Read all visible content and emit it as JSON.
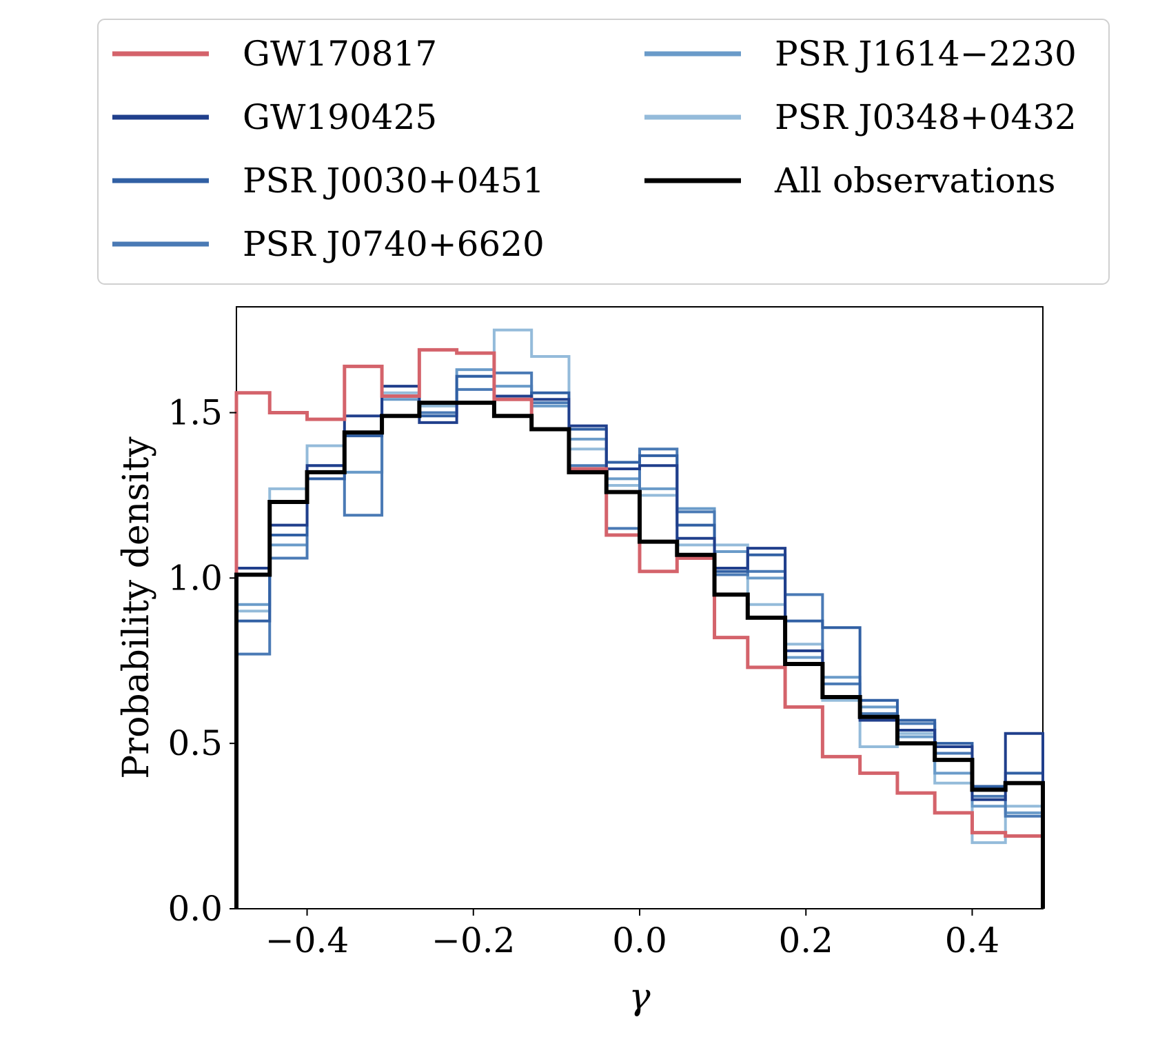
{
  "chart_data": {
    "type": "histogram",
    "xlabel": "γ",
    "ylabel": "Probability density",
    "xlim": [
      -0.485,
      0.485
    ],
    "ylim": [
      0.0,
      1.82
    ],
    "xticks": [
      -0.4,
      -0.2,
      0.0,
      0.2,
      0.4
    ],
    "xtick_labels": [
      "−0.4",
      "−0.2",
      "0.0",
      "0.2",
      "0.4"
    ],
    "yticks": [
      0.0,
      0.5,
      1.0,
      1.5
    ],
    "ytick_labels": [
      "0.0",
      "0.5",
      "1.0",
      "1.5"
    ],
    "grid": false,
    "legend_placement": "top, outside",
    "bin_edges": [
      -0.485,
      -0.445,
      -0.4,
      -0.355,
      -0.31,
      -0.265,
      -0.22,
      -0.175,
      -0.13,
      -0.085,
      -0.04,
      0.0,
      0.045,
      0.09,
      0.13,
      0.175,
      0.22,
      0.265,
      0.31,
      0.355,
      0.4,
      0.44,
      0.485
    ],
    "series": [
      {
        "name": "PSR J0348+0432",
        "color": "#94bbda",
        "width": 4,
        "values": [
          0.9,
          1.27,
          1.4,
          1.32,
          1.56,
          1.52,
          1.61,
          1.75,
          1.67,
          1.39,
          1.28,
          1.25,
          1.1,
          1.1,
          0.92,
          0.8,
          0.63,
          0.49,
          0.53,
          0.38,
          0.2,
          0.31
        ]
      },
      {
        "name": "PSR J1614−2230",
        "color": "#6a9bc9",
        "width": 4,
        "values": [
          0.92,
          1.1,
          1.34,
          1.32,
          1.54,
          1.53,
          1.63,
          1.58,
          1.52,
          1.42,
          1.3,
          1.27,
          1.21,
          1.08,
          1.0,
          0.76,
          0.7,
          0.61,
          0.52,
          0.41,
          0.31,
          0.29
        ]
      },
      {
        "name": "PSR J0740+6620",
        "color": "#4a7ab5",
        "width": 4,
        "values": [
          0.77,
          1.06,
          1.32,
          1.19,
          1.55,
          1.5,
          1.57,
          1.62,
          1.53,
          1.34,
          1.15,
          1.39,
          1.2,
          1.01,
          1.02,
          0.95,
          0.68,
          0.59,
          0.56,
          0.47,
          0.34,
          0.28
        ]
      },
      {
        "name": "PSR J0030+0451",
        "color": "#3160a4",
        "width": 4,
        "values": [
          0.87,
          1.13,
          1.3,
          1.43,
          1.49,
          1.49,
          1.61,
          1.55,
          1.56,
          1.45,
          1.35,
          1.37,
          1.16,
          1.02,
          1.07,
          0.87,
          0.85,
          0.63,
          0.57,
          0.5,
          0.37,
          0.41
        ]
      },
      {
        "name": "GW190425",
        "color": "#203f8c",
        "width": 4,
        "values": [
          1.03,
          1.16,
          1.34,
          1.49,
          1.58,
          1.47,
          1.53,
          1.55,
          1.54,
          1.46,
          1.33,
          1.34,
          1.12,
          1.03,
          1.09,
          0.78,
          0.64,
          0.57,
          0.54,
          0.49,
          0.33,
          0.53
        ]
      },
      {
        "name": "GW170817",
        "color": "#d4636b",
        "width": 5,
        "values": [
          1.56,
          1.5,
          1.48,
          1.64,
          1.55,
          1.69,
          1.68,
          1.54,
          1.45,
          1.33,
          1.13,
          1.02,
          1.06,
          0.82,
          0.73,
          0.61,
          0.46,
          0.41,
          0.35,
          0.29,
          0.23,
          0.22
        ]
      },
      {
        "name": "All observations",
        "color": "#000000",
        "width": 6,
        "values": [
          1.01,
          1.23,
          1.32,
          1.44,
          1.49,
          1.53,
          1.53,
          1.49,
          1.45,
          1.32,
          1.26,
          1.11,
          1.07,
          0.95,
          0.88,
          0.74,
          0.64,
          0.58,
          0.5,
          0.45,
          0.36,
          0.38
        ]
      }
    ],
    "legend": [
      {
        "name": "GW170817",
        "color": "#d4636b"
      },
      {
        "name": "GW190425",
        "color": "#203f8c"
      },
      {
        "name": "PSR J0030+0451",
        "color": "#3160a4"
      },
      {
        "name": "PSR J0740+6620",
        "color": "#4a7ab5"
      },
      {
        "name": "PSR J1614−2230",
        "color": "#6a9bc9"
      },
      {
        "name": "PSR J0348+0432",
        "color": "#94bbda"
      },
      {
        "name": "All observations",
        "color": "#000000"
      }
    ]
  }
}
